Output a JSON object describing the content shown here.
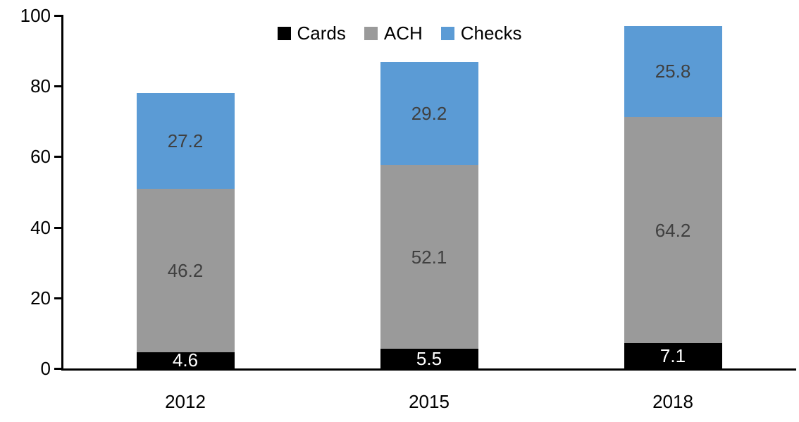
{
  "chart_data": {
    "type": "bar",
    "stacked": true,
    "title": "",
    "xlabel": "",
    "ylabel": "",
    "categories": [
      "2012",
      "2015",
      "2018"
    ],
    "series": [
      {
        "name": "Cards",
        "color": "#000000",
        "label_color": "#ffffff",
        "values": [
          4.6,
          5.5,
          7.1
        ]
      },
      {
        "name": "ACH",
        "color": "#9a9a9a",
        "label_color": "#404040",
        "values": [
          46.2,
          52.1,
          64.2
        ]
      },
      {
        "name": "Checks",
        "color": "#5b9bd5",
        "label_color": "#404040",
        "values": [
          27.2,
          29.2,
          25.8
        ]
      }
    ],
    "totals": [
      78.0,
      86.8,
      97.1
    ],
    "y_axis": {
      "min": 0,
      "max": 100,
      "tick_interval": 20,
      "ticks": [
        0,
        20,
        40,
        60,
        80,
        100
      ]
    },
    "legend": {
      "position": "top-center",
      "entries": [
        "Cards",
        "ACH",
        "Checks"
      ]
    },
    "grid": false,
    "data_labels": true,
    "axis_color": "#000000",
    "background_color": "#ffffff"
  }
}
